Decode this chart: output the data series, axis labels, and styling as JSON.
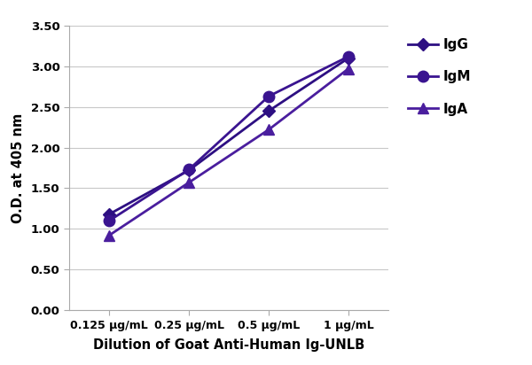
{
  "x_positions": [
    1,
    2,
    3,
    4
  ],
  "x_labels": [
    "0.125 μg/mL",
    "0.25 μg/mL",
    "0.5 μg/mL",
    "1 μg/mL"
  ],
  "IgG": [
    1.18,
    1.72,
    2.45,
    3.1
  ],
  "IgM": [
    1.1,
    1.73,
    2.63,
    3.12
  ],
  "IgA": [
    0.92,
    1.57,
    2.22,
    2.97
  ],
  "color_IgG": "#2d0f82",
  "color_IgM": "#3a1490",
  "color_IgA": "#4a1e9e",
  "ylabel": "O.D. at 405 nm",
  "xlabel": "Dilution of Goat Anti-Human Ig-UNLB",
  "ylim": [
    0.0,
    3.5
  ],
  "yticks": [
    0.0,
    0.5,
    1.0,
    1.5,
    2.0,
    2.5,
    3.0,
    3.5
  ],
  "legend_labels": [
    "IgG",
    "IgM",
    "IgA"
  ],
  "background_color": "#ffffff",
  "grid_color": "#c8c8c8",
  "line_width": 2.0,
  "marker_size_diamond": 7,
  "marker_size_circle": 9,
  "marker_size_triangle": 8
}
